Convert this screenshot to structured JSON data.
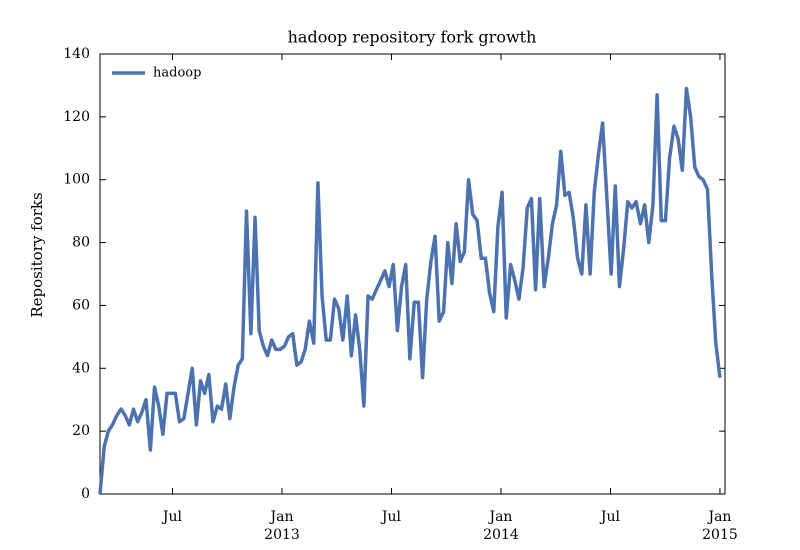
{
  "chart_data": {
    "type": "line",
    "title": "hadoop repository fork growth",
    "y_label": "Repository forks",
    "legend": "upper left",
    "grid": false,
    "xlim": [
      2012.169,
      2015.023
    ],
    "ylim": [
      0,
      140
    ],
    "yticks": [
      0,
      20,
      40,
      60,
      80,
      100,
      120,
      140
    ],
    "xticks": [
      {
        "value": 2012.5,
        "label": "Jul"
      },
      {
        "value": 2013,
        "label": "Jan"
      },
      {
        "value": 2013.5,
        "label": "Jul"
      },
      {
        "value": 2014,
        "label": "Jan"
      },
      {
        "value": 2014.5,
        "label": "Jul"
      },
      {
        "value": 2015,
        "label": "Jan"
      }
    ],
    "xtick_year_labels": [
      {
        "value": 2013,
        "label": "2013"
      },
      {
        "value": 2014,
        "label": "2014"
      },
      {
        "value": 2015,
        "label": "2015"
      }
    ],
    "x": [
      2012.169,
      2012.188,
      2012.207,
      2012.226,
      2012.246,
      2012.265,
      2012.284,
      2012.303,
      2012.322,
      2012.341,
      2012.36,
      2012.379,
      2012.399,
      2012.418,
      2012.437,
      2012.456,
      2012.475,
      2012.494,
      2012.513,
      2012.532,
      2012.552,
      2012.571,
      2012.59,
      2012.609,
      2012.628,
      2012.647,
      2012.666,
      2012.685,
      2012.705,
      2012.724,
      2012.743,
      2012.762,
      2012.781,
      2012.8,
      2012.819,
      2012.838,
      2012.858,
      2012.877,
      2012.896,
      2012.915,
      2012.934,
      2012.953,
      2012.972,
      2012.992,
      2013.011,
      2013.03,
      2013.049,
      2013.068,
      2013.087,
      2013.106,
      2013.125,
      2013.145,
      2013.164,
      2013.183,
      2013.202,
      2013.221,
      2013.24,
      2013.259,
      2013.278,
      2013.298,
      2013.317,
      2013.336,
      2013.355,
      2013.374,
      2013.393,
      2013.412,
      2013.431,
      2013.451,
      2013.47,
      2013.489,
      2013.508,
      2013.527,
      2013.546,
      2013.565,
      2013.584,
      2013.604,
      2013.623,
      2013.642,
      2013.661,
      2013.68,
      2013.699,
      2013.718,
      2013.738,
      2013.757,
      2013.776,
      2013.795,
      2013.814,
      2013.833,
      2013.852,
      2013.871,
      2013.891,
      2013.91,
      2013.929,
      2013.948,
      2013.967,
      2013.986,
      2014.005,
      2014.024,
      2014.044,
      2014.063,
      2014.082,
      2014.101,
      2014.12,
      2014.139,
      2014.158,
      2014.177,
      2014.197,
      2014.216,
      2014.235,
      2014.254,
      2014.273,
      2014.292,
      2014.311,
      2014.33,
      2014.35,
      2014.369,
      2014.388,
      2014.407,
      2014.426,
      2014.445,
      2014.464,
      2014.483,
      2014.503,
      2014.522,
      2014.541,
      2014.56,
      2014.579,
      2014.598,
      2014.617,
      2014.637,
      2014.656,
      2014.675,
      2014.694,
      2014.713,
      2014.732,
      2014.751,
      2014.77,
      2014.79,
      2014.809,
      2014.828,
      2014.847,
      2014.866,
      2014.885,
      2014.904,
      2014.923,
      2014.943,
      2014.962,
      2014.981,
      2015.0
    ],
    "series": [
      {
        "name": "hadoop",
        "color": "#4c72b0",
        "values": [
          0,
          15,
          20,
          22,
          25,
          27,
          25,
          22,
          27,
          23,
          26,
          30,
          14,
          34,
          28,
          19,
          32,
          32,
          32,
          23,
          24,
          32,
          40,
          22,
          36,
          32,
          38,
          23,
          28,
          27,
          35,
          24,
          34,
          41,
          43,
          90,
          51,
          88,
          52,
          47,
          44,
          49,
          46,
          46,
          47,
          50,
          51,
          41,
          42,
          46,
          55,
          48,
          99,
          63,
          49,
          49,
          62,
          59,
          49,
          63,
          44,
          57,
          46,
          28,
          63,
          62,
          65,
          68,
          71,
          66,
          73,
          52,
          66,
          73,
          43,
          61,
          61,
          37,
          62,
          74,
          82,
          55,
          58,
          80,
          67,
          86,
          74,
          77,
          100,
          89,
          87,
          75,
          75,
          64,
          58,
          85,
          96,
          56,
          73,
          68,
          62,
          72,
          91,
          94,
          65,
          94,
          66,
          75,
          86,
          92,
          109,
          95,
          96,
          88,
          75,
          70,
          92,
          70,
          96,
          108,
          118,
          95,
          70,
          98,
          66,
          78,
          93,
          91,
          93,
          86,
          92,
          80,
          92,
          127,
          87,
          87,
          107,
          117,
          113,
          103,
          129,
          120,
          104,
          101,
          100,
          97,
          70,
          48,
          37
        ]
      }
    ]
  }
}
